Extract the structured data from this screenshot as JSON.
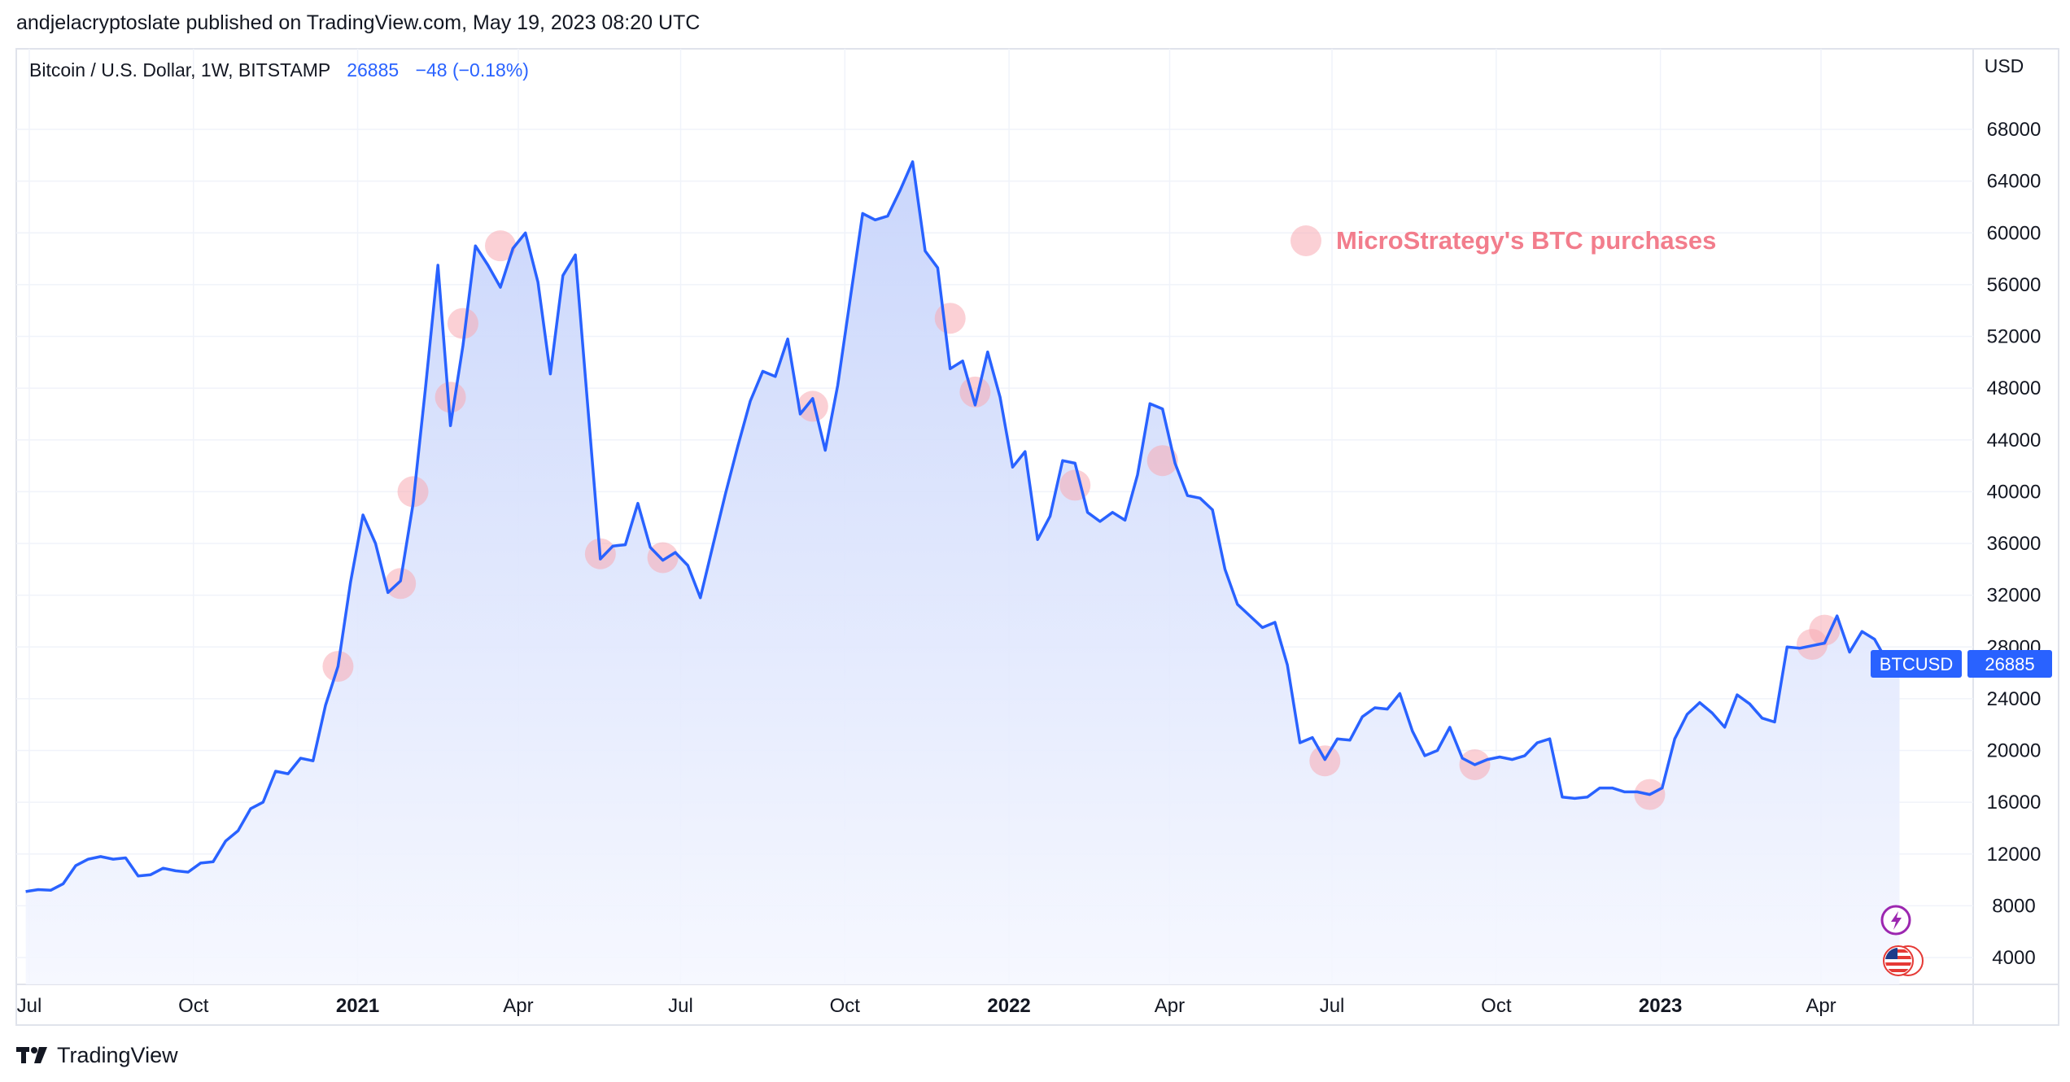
{
  "header": {
    "published_line": "andjelacryptoslate published on TradingView.com, May 19, 2023 08:20 UTC"
  },
  "legend": {
    "symbol": "Bitcoin / U.S. Dollar, 1W, BITSTAMP",
    "last_price": "26885",
    "change": "−48 (−0.18%)"
  },
  "annotation": {
    "text": "MicroStrategy's BTC purchases"
  },
  "price_tag": {
    "symbol": "BTCUSD",
    "value": "26885"
  },
  "footer": {
    "brand": "TradingView"
  },
  "colors": {
    "line": "#2962ff",
    "fill_top": "#c7d4fb",
    "fill_bottom": "#f5f7ff",
    "marker": "#f7a9b3",
    "annotation_text": "#f27d8c",
    "grid": "#f0f3fa",
    "price_tag_bg": "#2962ff",
    "text": "#131722"
  },
  "icons": [
    "lightning-icon",
    "us-flag-icon"
  ],
  "chart_data": {
    "type": "area",
    "title": "Bitcoin / U.S. Dollar, 1W, BITSTAMP",
    "ylabel": "USD",
    "ylim": [
      2000,
      70000
    ],
    "y_ticks": [
      4000,
      8000,
      12000,
      16000,
      20000,
      24000,
      28000,
      32000,
      36000,
      40000,
      44000,
      48000,
      52000,
      56000,
      60000,
      64000,
      68000
    ],
    "x_ticks": [
      {
        "date": "2020-07-01",
        "label": "Jul",
        "bold": false
      },
      {
        "date": "2020-10-01",
        "label": "Oct",
        "bold": false
      },
      {
        "date": "2021-01-01",
        "label": "2021",
        "bold": true
      },
      {
        "date": "2021-04-01",
        "label": "Apr",
        "bold": false
      },
      {
        "date": "2021-07-01",
        "label": "Jul",
        "bold": false
      },
      {
        "date": "2021-10-01",
        "label": "Oct",
        "bold": false
      },
      {
        "date": "2022-01-01",
        "label": "2022",
        "bold": true
      },
      {
        "date": "2022-04-01",
        "label": "Apr",
        "bold": false
      },
      {
        "date": "2022-07-01",
        "label": "Jul",
        "bold": false
      },
      {
        "date": "2022-10-01",
        "label": "Oct",
        "bold": false
      },
      {
        "date": "2023-01-01",
        "label": "2023",
        "bold": true
      },
      {
        "date": "2023-04-01",
        "label": "Apr",
        "bold": false
      }
    ],
    "grid": true,
    "series": [
      {
        "name": "BTCUSD",
        "points": [
          [
            "2020-06-29",
            9100
          ],
          [
            "2020-07-06",
            9250
          ],
          [
            "2020-07-13",
            9200
          ],
          [
            "2020-07-20",
            9700
          ],
          [
            "2020-07-27",
            11100
          ],
          [
            "2020-08-03",
            11600
          ],
          [
            "2020-08-10",
            11800
          ],
          [
            "2020-08-17",
            11600
          ],
          [
            "2020-08-24",
            11700
          ],
          [
            "2020-08-31",
            10300
          ],
          [
            "2020-09-07",
            10400
          ],
          [
            "2020-09-14",
            10900
          ],
          [
            "2020-09-21",
            10700
          ],
          [
            "2020-09-28",
            10600
          ],
          [
            "2020-10-05",
            11300
          ],
          [
            "2020-10-12",
            11400
          ],
          [
            "2020-10-19",
            13000
          ],
          [
            "2020-10-26",
            13800
          ],
          [
            "2020-11-02",
            15500
          ],
          [
            "2020-11-09",
            16000
          ],
          [
            "2020-11-16",
            18400
          ],
          [
            "2020-11-23",
            18200
          ],
          [
            "2020-11-30",
            19400
          ],
          [
            "2020-12-07",
            19200
          ],
          [
            "2020-12-14",
            23500
          ],
          [
            "2020-12-21",
            26500
          ],
          [
            "2020-12-28",
            33000
          ],
          [
            "2021-01-04",
            38200
          ],
          [
            "2021-01-11",
            36000
          ],
          [
            "2021-01-18",
            32200
          ],
          [
            "2021-01-25",
            33100
          ],
          [
            "2021-02-01",
            39000
          ],
          [
            "2021-02-08",
            48000
          ],
          [
            "2021-02-15",
            57500
          ],
          [
            "2021-02-22",
            45100
          ],
          [
            "2021-03-01",
            51300
          ],
          [
            "2021-03-08",
            59000
          ],
          [
            "2021-03-15",
            57500
          ],
          [
            "2021-03-22",
            55800
          ],
          [
            "2021-03-29",
            58800
          ],
          [
            "2021-04-05",
            60000
          ],
          [
            "2021-04-12",
            56200
          ],
          [
            "2021-04-19",
            49100
          ],
          [
            "2021-04-26",
            56700
          ],
          [
            "2021-05-03",
            58300
          ],
          [
            "2021-05-10",
            46500
          ],
          [
            "2021-05-17",
            34800
          ],
          [
            "2021-05-24",
            35800
          ],
          [
            "2021-05-31",
            35900
          ],
          [
            "2021-06-07",
            39100
          ],
          [
            "2021-06-14",
            35700
          ],
          [
            "2021-06-21",
            34700
          ],
          [
            "2021-06-28",
            35300
          ],
          [
            "2021-07-05",
            34300
          ],
          [
            "2021-07-12",
            31800
          ],
          [
            "2021-07-19",
            35800
          ],
          [
            "2021-07-26",
            39800
          ],
          [
            "2021-08-02",
            43500
          ],
          [
            "2021-08-09",
            47000
          ],
          [
            "2021-08-16",
            49300
          ],
          [
            "2021-08-23",
            48900
          ],
          [
            "2021-08-30",
            51800
          ],
          [
            "2021-09-06",
            46000
          ],
          [
            "2021-09-13",
            47200
          ],
          [
            "2021-09-20",
            43200
          ],
          [
            "2021-09-27",
            48200
          ],
          [
            "2021-10-04",
            54900
          ],
          [
            "2021-10-11",
            61500
          ],
          [
            "2021-10-18",
            61000
          ],
          [
            "2021-10-25",
            61300
          ],
          [
            "2021-11-01",
            63300
          ],
          [
            "2021-11-08",
            65500
          ],
          [
            "2021-11-15",
            58600
          ],
          [
            "2021-11-22",
            57300
          ],
          [
            "2021-11-29",
            49500
          ],
          [
            "2021-12-06",
            50100
          ],
          [
            "2021-12-13",
            46700
          ],
          [
            "2021-12-20",
            50800
          ],
          [
            "2021-12-27",
            47300
          ],
          [
            "2022-01-03",
            41900
          ],
          [
            "2022-01-10",
            43100
          ],
          [
            "2022-01-17",
            36300
          ],
          [
            "2022-01-24",
            38100
          ],
          [
            "2022-01-31",
            42400
          ],
          [
            "2022-02-07",
            42200
          ],
          [
            "2022-02-14",
            38400
          ],
          [
            "2022-02-21",
            37700
          ],
          [
            "2022-02-28",
            38400
          ],
          [
            "2022-03-07",
            37800
          ],
          [
            "2022-03-14",
            41300
          ],
          [
            "2022-03-21",
            46800
          ],
          [
            "2022-03-28",
            46400
          ],
          [
            "2022-04-04",
            42200
          ],
          [
            "2022-04-11",
            39700
          ],
          [
            "2022-04-18",
            39500
          ],
          [
            "2022-04-25",
            38600
          ],
          [
            "2022-05-02",
            34000
          ],
          [
            "2022-05-09",
            31300
          ],
          [
            "2022-05-16",
            30400
          ],
          [
            "2022-05-23",
            29500
          ],
          [
            "2022-05-30",
            29900
          ],
          [
            "2022-06-06",
            26600
          ],
          [
            "2022-06-13",
            20600
          ],
          [
            "2022-06-20",
            21000
          ],
          [
            "2022-06-27",
            19300
          ],
          [
            "2022-07-04",
            20900
          ],
          [
            "2022-07-11",
            20800
          ],
          [
            "2022-07-18",
            22600
          ],
          [
            "2022-07-25",
            23300
          ],
          [
            "2022-08-01",
            23200
          ],
          [
            "2022-08-08",
            24400
          ],
          [
            "2022-08-15",
            21500
          ],
          [
            "2022-08-22",
            19600
          ],
          [
            "2022-08-29",
            20000
          ],
          [
            "2022-09-05",
            21800
          ],
          [
            "2022-09-12",
            19400
          ],
          [
            "2022-09-19",
            18900
          ],
          [
            "2022-09-26",
            19300
          ],
          [
            "2022-10-03",
            19500
          ],
          [
            "2022-10-10",
            19300
          ],
          [
            "2022-10-17",
            19600
          ],
          [
            "2022-10-24",
            20600
          ],
          [
            "2022-10-31",
            20900
          ],
          [
            "2022-11-07",
            16400
          ],
          [
            "2022-11-14",
            16300
          ],
          [
            "2022-11-21",
            16400
          ],
          [
            "2022-11-28",
            17100
          ],
          [
            "2022-12-05",
            17100
          ],
          [
            "2022-12-12",
            16800
          ],
          [
            "2022-12-19",
            16800
          ],
          [
            "2022-12-26",
            16600
          ],
          [
            "2023-01-02",
            17100
          ],
          [
            "2023-01-09",
            20900
          ],
          [
            "2023-01-16",
            22800
          ],
          [
            "2023-01-23",
            23700
          ],
          [
            "2023-01-30",
            22900
          ],
          [
            "2023-02-06",
            21800
          ],
          [
            "2023-02-13",
            24300
          ],
          [
            "2023-02-20",
            23600
          ],
          [
            "2023-02-27",
            22500
          ],
          [
            "2023-03-06",
            22200
          ],
          [
            "2023-03-13",
            28000
          ],
          [
            "2023-03-20",
            27900
          ],
          [
            "2023-03-27",
            28100
          ],
          [
            "2023-04-03",
            28300
          ],
          [
            "2023-04-10",
            30400
          ],
          [
            "2023-04-17",
            27600
          ],
          [
            "2023-04-24",
            29200
          ],
          [
            "2023-05-01",
            28600
          ],
          [
            "2023-05-08",
            26900
          ],
          [
            "2023-05-15",
            26885
          ]
        ]
      }
    ],
    "purchase_markers": [
      [
        "2020-12-21",
        26500
      ],
      [
        "2021-01-25",
        32900
      ],
      [
        "2021-02-01",
        40000
      ],
      [
        "2021-02-22",
        47300
      ],
      [
        "2021-03-01",
        53000
      ],
      [
        "2021-03-22",
        59000
      ],
      [
        "2021-05-17",
        35200
      ],
      [
        "2021-06-21",
        34900
      ],
      [
        "2021-09-13",
        46600
      ],
      [
        "2021-11-29",
        53400
      ],
      [
        "2021-12-13",
        47700
      ],
      [
        "2022-02-07",
        40500
      ],
      [
        "2022-03-28",
        42400
      ],
      [
        "2022-06-27",
        19200
      ],
      [
        "2022-09-19",
        18900
      ],
      [
        "2022-12-26",
        16600
      ],
      [
        "2023-03-27",
        28200
      ],
      [
        "2023-04-03",
        29300
      ]
    ]
  }
}
